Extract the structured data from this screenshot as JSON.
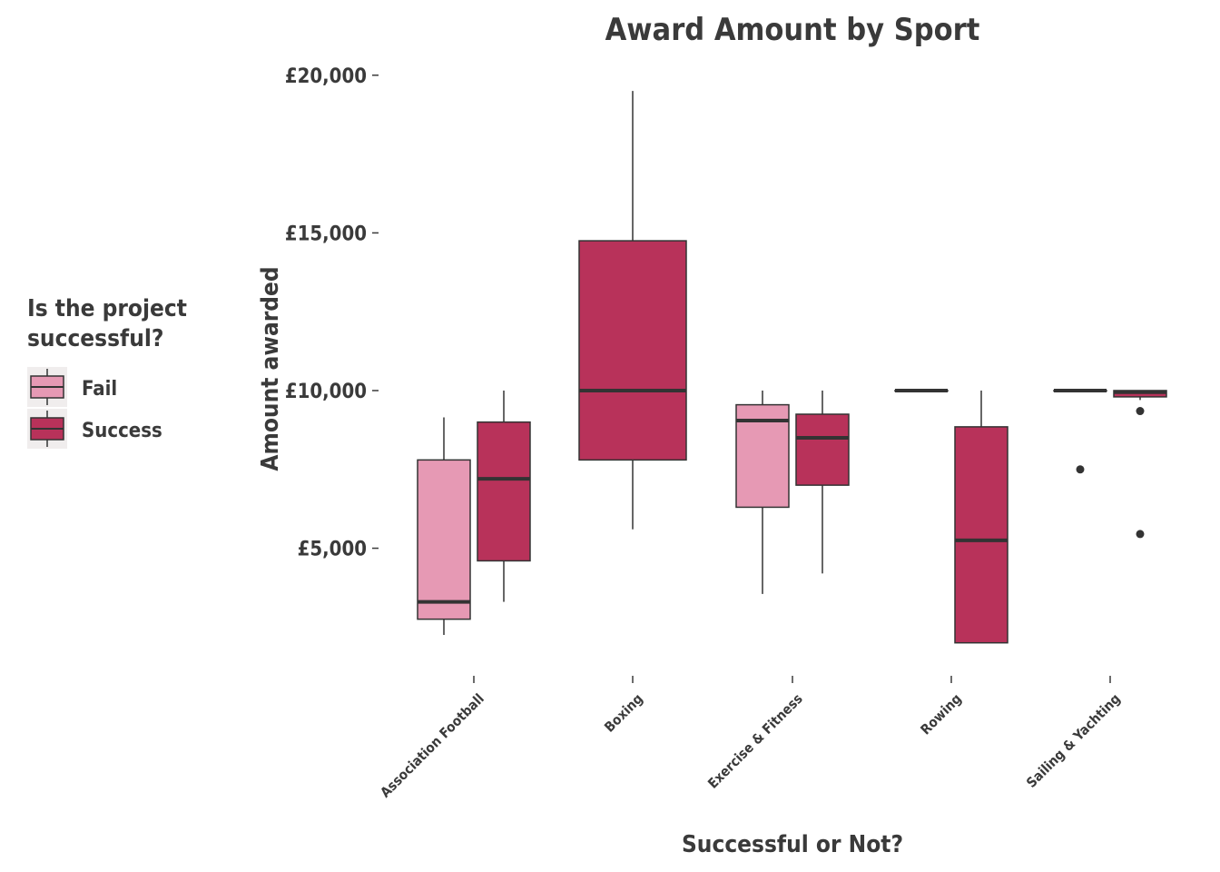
{
  "chart_data": {
    "type": "boxplot",
    "title": "Award Amount by Sport",
    "xlabel": "Successful or Not?",
    "ylabel": "Amount awarded",
    "ylim": [
      1300,
      20600
    ],
    "yticks": [
      5000,
      10000,
      15000,
      20000
    ],
    "ytick_labels": [
      "£5,000",
      "£10,000",
      "£15,000",
      "£20,000"
    ],
    "categories": [
      "Association Football",
      "Boxing",
      "Exercise & Fitness",
      "Rowing",
      "Sailing & Yachting"
    ],
    "legend": {
      "title_lines": [
        "Is the project",
        "successful?"
      ],
      "position": "left",
      "entries": [
        {
          "name": "Fail",
          "color": "#e699b4"
        },
        {
          "name": "Success",
          "color": "#b8325a"
        }
      ]
    },
    "grid": false,
    "boxes": [
      {
        "category": "Association Football",
        "group": "Fail",
        "min": 2250,
        "q1": 2750,
        "median": 3300,
        "q3": 7800,
        "max": 9150,
        "outliers": []
      },
      {
        "category": "Association Football",
        "group": "Success",
        "min": 3300,
        "q1": 4600,
        "median": 7200,
        "q3": 9000,
        "max": 10000,
        "outliers": []
      },
      {
        "category": "Boxing",
        "group": "Success",
        "min": 5600,
        "q1": 7800,
        "median": 10000,
        "q3": 14750,
        "max": 19500,
        "outliers": []
      },
      {
        "category": "Exercise & Fitness",
        "group": "Fail",
        "min": 3550,
        "q1": 6300,
        "median": 9050,
        "q3": 9550,
        "max": 10000,
        "outliers": []
      },
      {
        "category": "Exercise & Fitness",
        "group": "Success",
        "min": 4200,
        "q1": 7000,
        "median": 8500,
        "q3": 9250,
        "max": 10000,
        "outliers": []
      },
      {
        "category": "Rowing",
        "group": "Fail",
        "min": 10000,
        "q1": 10000,
        "median": 10000,
        "q3": 10000,
        "max": 10000,
        "outliers": []
      },
      {
        "category": "Rowing",
        "group": "Success",
        "min": 2000,
        "q1": 2000,
        "median": 5250,
        "q3": 8850,
        "max": 10000,
        "outliers": []
      },
      {
        "category": "Sailing & Yachting",
        "group": "Fail",
        "min": 10000,
        "q1": 10000,
        "median": 10000,
        "q3": 10000,
        "max": 10000,
        "outliers": [
          7500
        ]
      },
      {
        "category": "Sailing & Yachting",
        "group": "Success",
        "min": 9700,
        "q1": 9800,
        "median": 9950,
        "q3": 10000,
        "max": 10000,
        "outliers": [
          9350,
          5450
        ]
      }
    ]
  }
}
